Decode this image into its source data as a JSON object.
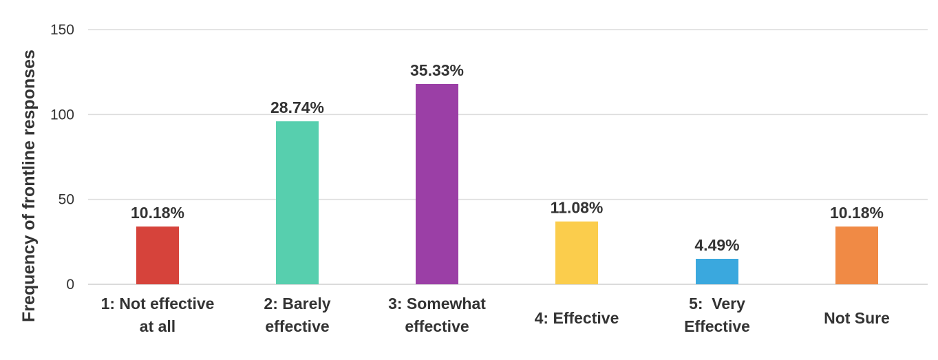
{
  "chart_data": {
    "type": "bar",
    "title": "",
    "xlabel": "",
    "ylabel": "Frequency of frontline responses",
    "ylim": [
      0,
      150
    ],
    "yticks": [
      0,
      50,
      100,
      150
    ],
    "grid": true,
    "legend": "none",
    "categories": [
      [
        "1: Not effective",
        "at all"
      ],
      [
        "2: Barely",
        "effective"
      ],
      [
        "3: Somewhat",
        "effective"
      ],
      [
        "4: Effective"
      ],
      [
        "5:  Very",
        "Effective"
      ],
      [
        "Not Sure"
      ]
    ],
    "values": [
      34,
      96,
      118,
      37,
      15,
      34
    ],
    "data_labels": [
      "10.18%",
      "28.74%",
      "35.33%",
      "11.08%",
      "4.49%",
      "10.18%"
    ],
    "colors": [
      "#d6433b",
      "#57cfae",
      "#9b3fa6",
      "#fbcd4c",
      "#3aa8de",
      "#f08a45"
    ]
  }
}
